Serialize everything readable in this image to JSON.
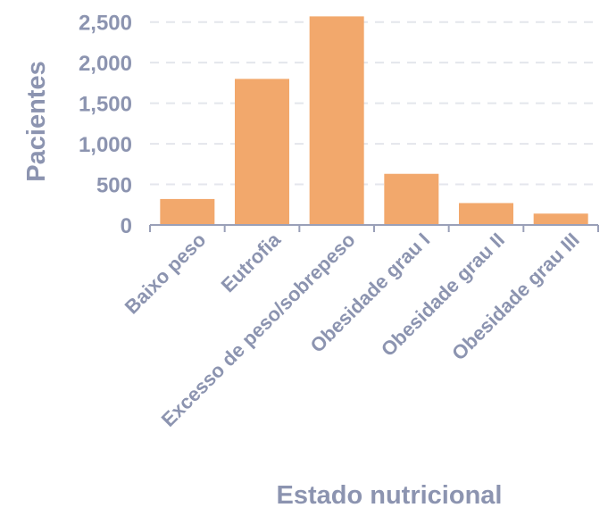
{
  "colors": {
    "bar": "#F2A86C",
    "text": "#8C94B0",
    "grid": "#E4E6EC",
    "axis": "#9AA0B8"
  },
  "chart_data": {
    "type": "bar",
    "title": "",
    "xlabel": "Estado nutricional",
    "ylabel": "Pacientes",
    "categories": [
      "Baixo peso",
      "Eutrofia",
      "Excesso de peso/sobrepeso",
      "Obesidade grau I",
      "Obesidade grau II",
      "Obesidade grau III"
    ],
    "values": [
      320,
      1800,
      2570,
      630,
      270,
      140
    ],
    "ylim": [
      0,
      2750
    ],
    "yticks": [
      0,
      500,
      1000,
      1500,
      2000,
      2500
    ],
    "ytick_labels": [
      "0",
      "500",
      "1,000",
      "1,500",
      "2,000",
      "2,500"
    ],
    "grid": true,
    "grid_style": "dashed"
  }
}
